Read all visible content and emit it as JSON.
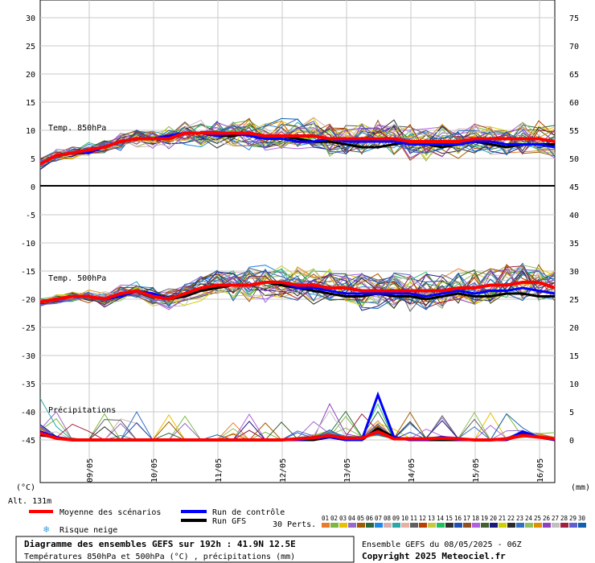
{
  "chart_data": {
    "type": "line",
    "title": "Diagramme des ensembles GEFS sur 192h : 41.9N 12.5E",
    "subtitle": "Températures 850hPa et 500hPa (°C) , précipitations (mm)",
    "run_info": "Ensemble GEFS du 08/05/2025 - 06Z",
    "copyright": "Copyright 2025 Meteociel.fr",
    "altitude": "Alt. 131m",
    "unit_left": "(°C)",
    "unit_right": "(mm)",
    "x_dates": [
      "09/05",
      "10/05",
      "11/05",
      "12/05",
      "13/05",
      "14/05",
      "15/05",
      "16/05"
    ],
    "panels": {
      "t850": {
        "label": "Temp. 850hPa",
        "left_ticks": [
          "30",
          "25",
          "20",
          "15",
          "10",
          "5",
          "0"
        ],
        "right_ticks": [
          "75",
          "70",
          "65",
          "60",
          "55",
          "50"
        ]
      },
      "t500": {
        "label": "Temp. 500hPa",
        "left_ticks": [
          "-5",
          "-10",
          "-15",
          "-20",
          "-25",
          "-30",
          "-35",
          "-40",
          "-45"
        ],
        "right_ticks": [
          "45",
          "40",
          "35",
          "30",
          "25",
          "20",
          "15",
          "10",
          "5",
          "0"
        ]
      },
      "precip": {
        "label": "Précipitations"
      }
    },
    "series_mean": {
      "name": "Moyenne des scénarios",
      "t850": [
        4.0,
        5.5,
        6.0,
        6.5,
        7.0,
        8.0,
        8.5,
        8.5,
        8.5,
        9.5,
        9.5,
        9.5,
        9.5,
        9.5,
        9.0,
        9.0,
        9.0,
        9.0,
        8.5,
        8.5,
        8.5,
        8.5,
        8.5,
        8.0,
        8.0,
        8.0,
        8.0,
        8.5,
        8.5,
        8.5,
        8.5,
        8.5,
        8.0
      ],
      "t500": [
        -20.5,
        -20.0,
        -19.5,
        -19.5,
        -20.0,
        -19.0,
        -18.5,
        -19.5,
        -20.0,
        -19.0,
        -18.0,
        -17.5,
        -17.5,
        -17.5,
        -17.0,
        -17.0,
        -17.5,
        -17.5,
        -18.0,
        -18.0,
        -18.5,
        -18.5,
        -18.5,
        -18.5,
        -18.5,
        -18.5,
        -18.0,
        -18.0,
        -17.5,
        -17.5,
        -17.0,
        -17.0,
        -18.0
      ],
      "precip": [
        1.2,
        0.3,
        0,
        0,
        0,
        0,
        0,
        0,
        0,
        0,
        0,
        0,
        0,
        0,
        0,
        0,
        0.2,
        0.4,
        0.8,
        0.3,
        0.3,
        1.5,
        0.2,
        0.2,
        0.2,
        0.3,
        0.2,
        0,
        0,
        0.2,
        0.8,
        0.5,
        0.2
      ]
    },
    "series_control": {
      "name": "Run de contrôle",
      "t850": [
        4.0,
        5.5,
        6.0,
        6.0,
        7.0,
        8.0,
        8.5,
        8.5,
        9.0,
        9.5,
        9.5,
        9.0,
        9.5,
        9.0,
        8.5,
        8.5,
        8.0,
        8.0,
        8.5,
        8.0,
        8.0,
        8.0,
        8.0,
        7.5,
        7.5,
        7.5,
        7.5,
        8.0,
        8.0,
        7.5,
        7.5,
        7.5,
        7.0
      ],
      "t500": [
        -20.5,
        -20.0,
        -19.5,
        -19.5,
        -20.0,
        -19.5,
        -18.5,
        -19.0,
        -20.0,
        -19.0,
        -18.0,
        -17.5,
        -17.5,
        -17.5,
        -17.0,
        -17.0,
        -18.0,
        -18.0,
        -18.5,
        -19.0,
        -19.0,
        -19.0,
        -19.0,
        -19.0,
        -19.5,
        -19.0,
        -18.5,
        -19.0,
        -18.5,
        -18.5,
        -18.0,
        -18.5,
        -19.0
      ],
      "precip": [
        1.5,
        0.5,
        0,
        0,
        0,
        0,
        0,
        0,
        0,
        0,
        0,
        0,
        0,
        0,
        0,
        0,
        0,
        0.3,
        0.5,
        0,
        0,
        8.0,
        0.5,
        0,
        0,
        0.5,
        0,
        0,
        0,
        0,
        1.5,
        0.5,
        0
      ]
    },
    "series_gfs": {
      "name": "Run GFS",
      "t850": [
        4.0,
        5.5,
        6.0,
        6.5,
        7.0,
        8.0,
        8.5,
        8.5,
        9.0,
        9.5,
        9.5,
        9.0,
        9.0,
        9.5,
        9.0,
        9.0,
        8.5,
        8.0,
        8.0,
        7.5,
        7.0,
        7.0,
        7.5,
        8.0,
        7.5,
        7.0,
        7.5,
        8.0,
        7.5,
        7.0,
        7.5,
        7.5,
        7.5
      ],
      "t500": [
        -20.5,
        -20.0,
        -19.5,
        -19.5,
        -20.0,
        -19.5,
        -18.5,
        -19.0,
        -20.0,
        -19.5,
        -18.5,
        -18.0,
        -17.5,
        -17.5,
        -17.0,
        -17.5,
        -18.0,
        -18.5,
        -19.0,
        -19.5,
        -19.5,
        -19.0,
        -19.5,
        -19.5,
        -20.0,
        -19.5,
        -19.0,
        -19.5,
        -19.5,
        -19.0,
        -19.0,
        -19.5,
        -19.5
      ],
      "precip": [
        1.0,
        0.3,
        0,
        0,
        0,
        0,
        0,
        0,
        0,
        0,
        0,
        0,
        0,
        0,
        0,
        0,
        0,
        0,
        0.5,
        0,
        0,
        2.0,
        0.5,
        0,
        0,
        0,
        0,
        0,
        0,
        0,
        1.0,
        0.5,
        0
      ]
    },
    "legend": {
      "mean": "Moyenne des scénarios",
      "control": "Run de contrôle",
      "gfs": "Run GFS",
      "snow": "Risque neige",
      "perts": "30 Perts.",
      "pert_labels": [
        "01",
        "02",
        "03",
        "04",
        "05",
        "06",
        "07",
        "08",
        "09",
        "10",
        "11",
        "12",
        "13",
        "14",
        "15",
        "16",
        "17",
        "18",
        "19",
        "20",
        "21",
        "22",
        "23",
        "24",
        "25",
        "26",
        "27",
        "28",
        "29",
        "30"
      ]
    },
    "colors": {
      "mean": "#ff0000",
      "control": "#0000ff",
      "gfs": "#000000",
      "grid": "#c8c8c8",
      "perts": [
        "#e87c2a",
        "#7cb840",
        "#e8c000",
        "#9a6ac8",
        "#a05a00",
        "#2a6a3a",
        "#1e88e8",
        "#d8b0b0",
        "#2aa8a8",
        "#e8b0a0",
        "#606060",
        "#b84000",
        "#c8c840",
        "#20c060",
        "#303030",
        "#2050b0",
        "#905020",
        "#b060e0",
        "#406030",
        "#1a1a80",
        "#d0d000",
        "#2a2a2a",
        "#3070c0",
        "#90c060",
        "#e09000",
        "#9040c0",
        "#c0c0c0",
        "#a02040",
        "#6060d0",
        "#1060b0"
      ]
    },
    "x_steps": 33
  }
}
